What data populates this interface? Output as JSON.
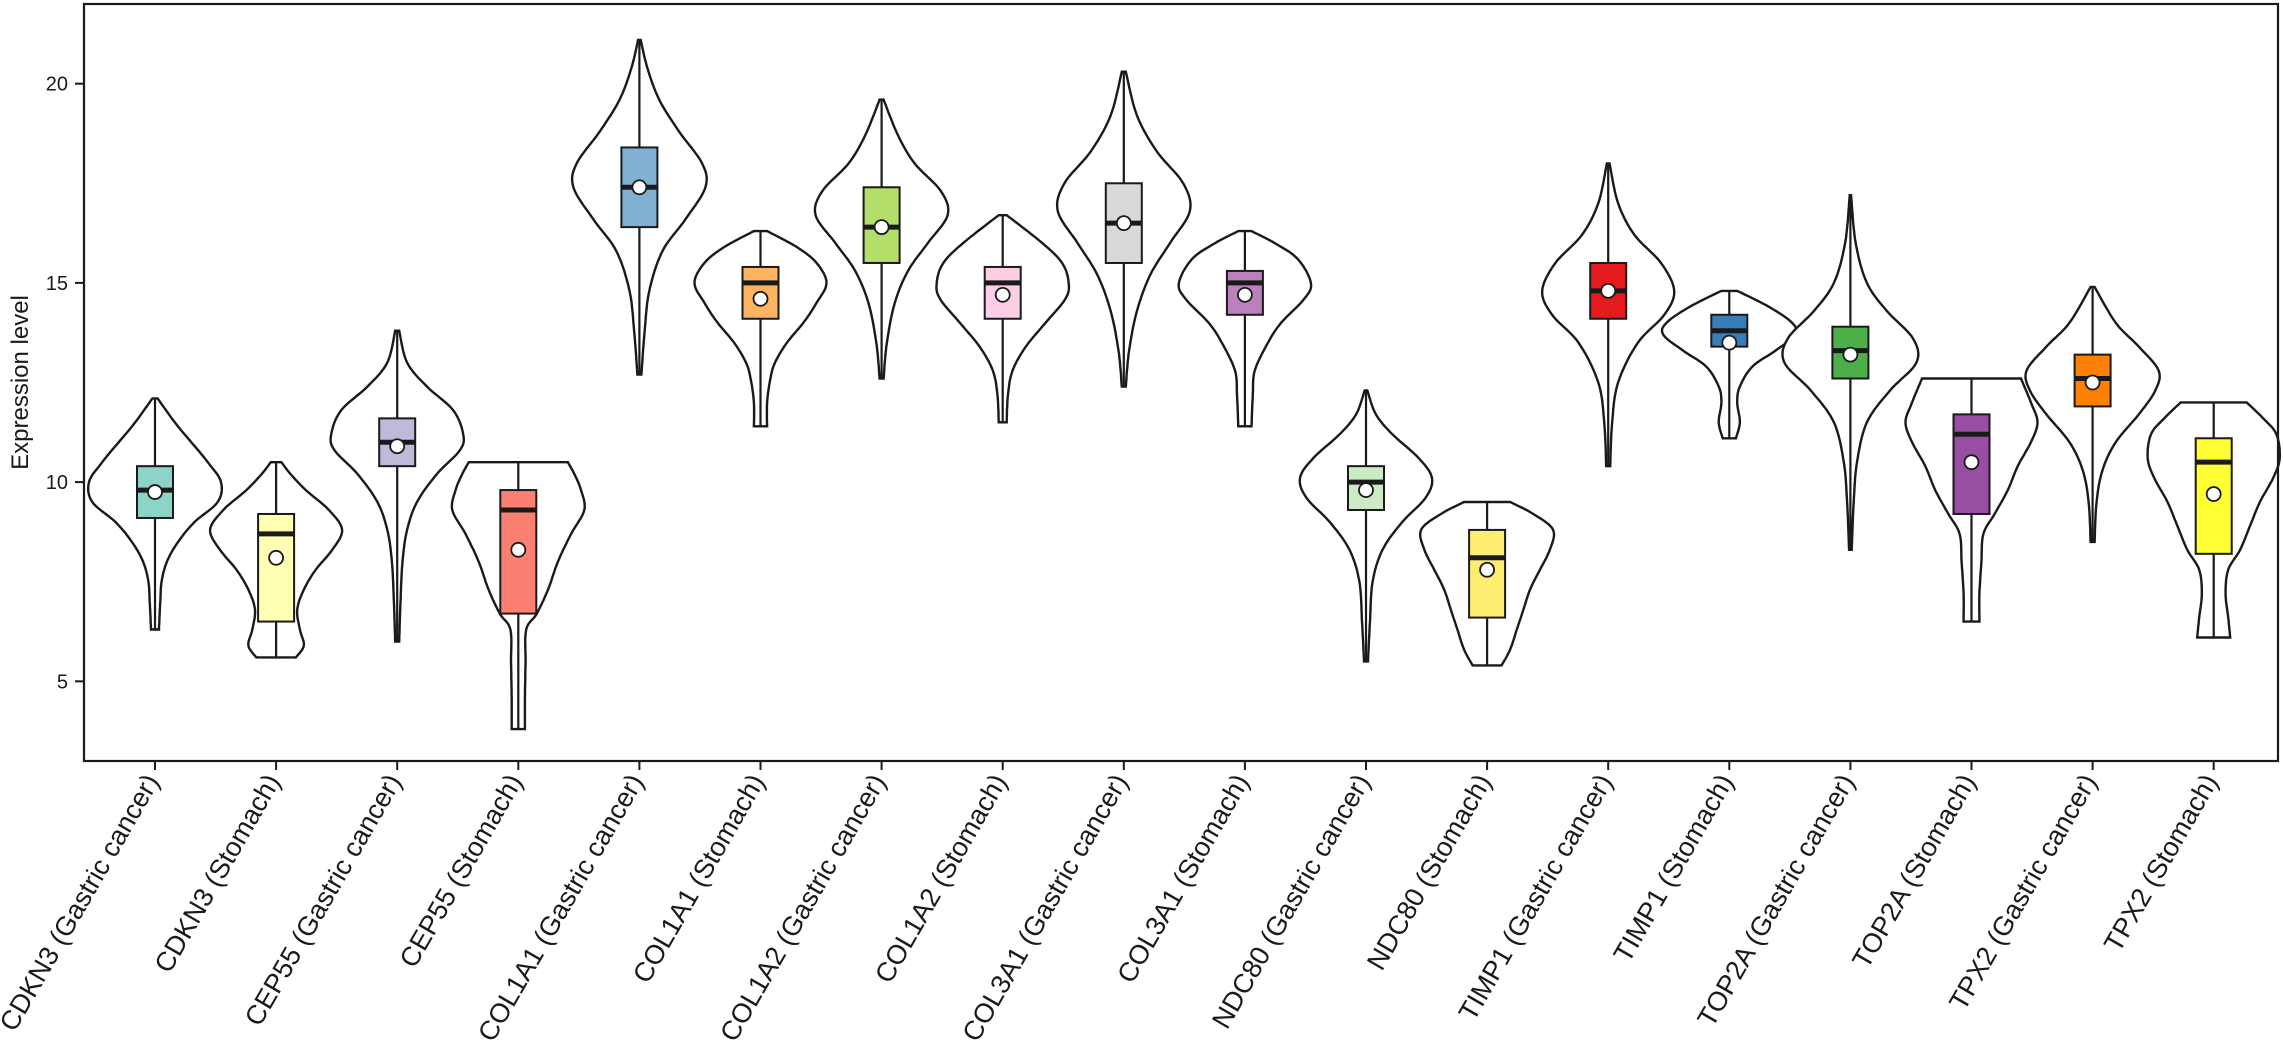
{
  "chart_data": {
    "type": "violin",
    "title": "",
    "xlabel": "",
    "ylabel": "Expression level",
    "ylim": [
      3,
      22
    ],
    "yticks": [
      5,
      10,
      15,
      20
    ],
    "grid": false,
    "legend": "none",
    "categories": [
      "CDKN3 (Gastric cancer)",
      "CDKN3 (Stomach)",
      "CEP55 (Gastric cancer)",
      "CEP55 (Stomach)",
      "COL1A1 (Gastric cancer)",
      "COL1A1 (Stomach)",
      "COL1A2 (Gastric cancer)",
      "COL1A2 (Stomach)",
      "COL3A1 (Gastric cancer)",
      "COL3A1 (Stomach)",
      "NDC80 (Gastric cancer)",
      "NDC80 (Stomach)",
      "TIMP1 (Gastric cancer)",
      "TIMP1 (Stomach)",
      "TOP2A (Gastric cancer)",
      "TOP2A (Stomach)",
      "TPX2 (Gastric cancer)",
      "TPX2 (Stomach)"
    ],
    "groups": [
      {
        "label": "CDKN3 (Gastric cancer)",
        "color": "#8DD3C7",
        "min": 6.3,
        "q1": 9.1,
        "median": 9.8,
        "q3": 10.4,
        "max": 12.1,
        "mean": 9.75,
        "density": [
          [
            6.3,
            0.06
          ],
          [
            7.0,
            0.08
          ],
          [
            7.5,
            0.1
          ],
          [
            8.0,
            0.18
          ],
          [
            8.5,
            0.35
          ],
          [
            9.0,
            0.6
          ],
          [
            9.5,
            0.95
          ],
          [
            10.0,
            1.0
          ],
          [
            10.5,
            0.8
          ],
          [
            11.0,
            0.55
          ],
          [
            11.5,
            0.3
          ],
          [
            12.1,
            0.04
          ]
        ]
      },
      {
        "label": "CDKN3 (Stomach)",
        "color": "#FFFFB3",
        "min": 5.6,
        "q1": 6.5,
        "median": 8.7,
        "q3": 9.2,
        "max": 10.5,
        "mean": 8.1,
        "density": [
          [
            5.6,
            0.3
          ],
          [
            5.9,
            0.42
          ],
          [
            6.3,
            0.36
          ],
          [
            6.8,
            0.32
          ],
          [
            7.3,
            0.42
          ],
          [
            7.8,
            0.6
          ],
          [
            8.3,
            0.85
          ],
          [
            8.8,
            1.0
          ],
          [
            9.3,
            0.8
          ],
          [
            9.8,
            0.45
          ],
          [
            10.2,
            0.22
          ],
          [
            10.5,
            0.08
          ]
        ]
      },
      {
        "label": "CEP55 (Gastric cancer)",
        "color": "#BEBADA",
        "min": 6.0,
        "q1": 10.4,
        "median": 11.0,
        "q3": 11.6,
        "max": 13.8,
        "mean": 10.9,
        "density": [
          [
            6.0,
            0.03
          ],
          [
            7.0,
            0.05
          ],
          [
            8.0,
            0.08
          ],
          [
            8.8,
            0.15
          ],
          [
            9.5,
            0.3
          ],
          [
            10.2,
            0.6
          ],
          [
            10.8,
            0.95
          ],
          [
            11.2,
            1.0
          ],
          [
            11.8,
            0.85
          ],
          [
            12.4,
            0.45
          ],
          [
            13.0,
            0.15
          ],
          [
            13.8,
            0.03
          ]
        ]
      },
      {
        "label": "CEP55 (Stomach)",
        "color": "#FB8072",
        "min": 3.8,
        "q1": 6.7,
        "median": 9.3,
        "q3": 9.8,
        "max": 10.5,
        "mean": 8.3,
        "density": [
          [
            3.8,
            0.1
          ],
          [
            4.5,
            0.1
          ],
          [
            5.5,
            0.11
          ],
          [
            6.3,
            0.12
          ],
          [
            6.7,
            0.28
          ],
          [
            7.3,
            0.45
          ],
          [
            8.0,
            0.6
          ],
          [
            8.7,
            0.8
          ],
          [
            9.3,
            1.0
          ],
          [
            9.8,
            0.95
          ],
          [
            10.2,
            0.85
          ],
          [
            10.5,
            0.75
          ]
        ]
      },
      {
        "label": "COL1A1 (Gastric cancer)",
        "color": "#80B1D3",
        "min": 12.7,
        "q1": 16.4,
        "median": 17.4,
        "q3": 18.4,
        "max": 21.1,
        "mean": 17.4,
        "density": [
          [
            12.7,
            0.03
          ],
          [
            13.8,
            0.08
          ],
          [
            14.8,
            0.15
          ],
          [
            15.8,
            0.35
          ],
          [
            16.6,
            0.7
          ],
          [
            17.4,
            1.0
          ],
          [
            18.0,
            0.95
          ],
          [
            18.8,
            0.6
          ],
          [
            19.6,
            0.3
          ],
          [
            20.4,
            0.12
          ],
          [
            21.1,
            0.02
          ]
        ]
      },
      {
        "label": "COL1A1 (Stomach)",
        "color": "#FDB462",
        "min": 11.4,
        "q1": 14.1,
        "median": 15.0,
        "q3": 15.4,
        "max": 16.3,
        "mean": 14.6,
        "density": [
          [
            11.4,
            0.1
          ],
          [
            12.0,
            0.1
          ],
          [
            12.6,
            0.15
          ],
          [
            13.0,
            0.22
          ],
          [
            13.5,
            0.4
          ],
          [
            14.0,
            0.65
          ],
          [
            14.5,
            0.85
          ],
          [
            15.0,
            1.0
          ],
          [
            15.5,
            0.85
          ],
          [
            15.9,
            0.55
          ],
          [
            16.3,
            0.1
          ]
        ]
      },
      {
        "label": "COL1A2 (Gastric cancer)",
        "color": "#B3DE69",
        "min": 12.6,
        "q1": 15.5,
        "median": 16.4,
        "q3": 17.4,
        "max": 19.6,
        "mean": 16.4,
        "density": [
          [
            12.6,
            0.03
          ],
          [
            13.5,
            0.08
          ],
          [
            14.5,
            0.2
          ],
          [
            15.3,
            0.4
          ],
          [
            16.0,
            0.7
          ],
          [
            16.7,
            1.0
          ],
          [
            17.3,
            0.9
          ],
          [
            18.0,
            0.5
          ],
          [
            18.7,
            0.25
          ],
          [
            19.6,
            0.03
          ]
        ]
      },
      {
        "label": "COL1A2 (Stomach)",
        "color": "#FCCDE5",
        "min": 11.5,
        "q1": 14.1,
        "median": 15.0,
        "q3": 15.4,
        "max": 16.7,
        "mean": 14.7,
        "density": [
          [
            11.5,
            0.06
          ],
          [
            12.2,
            0.08
          ],
          [
            12.8,
            0.15
          ],
          [
            13.4,
            0.35
          ],
          [
            14.0,
            0.65
          ],
          [
            14.6,
            0.95
          ],
          [
            15.0,
            1.0
          ],
          [
            15.5,
            0.9
          ],
          [
            16.0,
            0.6
          ],
          [
            16.7,
            0.06
          ]
        ]
      },
      {
        "label": "COL3A1 (Gastric cancer)",
        "color": "#D9D9D9",
        "min": 12.4,
        "q1": 15.5,
        "median": 16.5,
        "q3": 17.5,
        "max": 20.3,
        "mean": 16.5,
        "density": [
          [
            12.4,
            0.03
          ],
          [
            13.3,
            0.08
          ],
          [
            14.3,
            0.2
          ],
          [
            15.2,
            0.4
          ],
          [
            16.0,
            0.7
          ],
          [
            16.8,
            1.0
          ],
          [
            17.5,
            0.9
          ],
          [
            18.3,
            0.5
          ],
          [
            19.2,
            0.2
          ],
          [
            20.3,
            0.03
          ]
        ]
      },
      {
        "label": "COL3A1 (Stomach)",
        "color": "#BC80BD",
        "min": 11.4,
        "q1": 14.2,
        "median": 15.0,
        "q3": 15.3,
        "max": 16.3,
        "mean": 14.7,
        "density": [
          [
            11.4,
            0.1
          ],
          [
            12.2,
            0.12
          ],
          [
            12.8,
            0.15
          ],
          [
            13.5,
            0.35
          ],
          [
            14.0,
            0.55
          ],
          [
            14.6,
            0.9
          ],
          [
            15.0,
            1.0
          ],
          [
            15.6,
            0.8
          ],
          [
            16.0,
            0.45
          ],
          [
            16.3,
            0.1
          ]
        ]
      },
      {
        "label": "NDC80 (Gastric cancer)",
        "color": "#CCEBC5",
        "min": 5.5,
        "q1": 9.3,
        "median": 10.0,
        "q3": 10.4,
        "max": 12.3,
        "mean": 9.8,
        "density": [
          [
            5.5,
            0.03
          ],
          [
            6.5,
            0.06
          ],
          [
            7.5,
            0.1
          ],
          [
            8.3,
            0.25
          ],
          [
            9.0,
            0.55
          ],
          [
            9.6,
            0.9
          ],
          [
            10.1,
            1.0
          ],
          [
            10.6,
            0.8
          ],
          [
            11.2,
            0.4
          ],
          [
            11.7,
            0.15
          ],
          [
            12.3,
            0.02
          ]
        ]
      },
      {
        "label": "NDC80 (Stomach)",
        "color": "#FFED6F",
        "min": 5.4,
        "q1": 6.6,
        "median": 8.1,
        "q3": 8.8,
        "max": 9.5,
        "mean": 7.8,
        "density": [
          [
            5.4,
            0.22
          ],
          [
            5.8,
            0.35
          ],
          [
            6.3,
            0.45
          ],
          [
            6.8,
            0.55
          ],
          [
            7.3,
            0.65
          ],
          [
            7.8,
            0.8
          ],
          [
            8.3,
            0.95
          ],
          [
            8.8,
            1.0
          ],
          [
            9.2,
            0.7
          ],
          [
            9.5,
            0.35
          ]
        ]
      },
      {
        "label": "TIMP1 (Gastric cancer)",
        "color": "#E41A1C",
        "min": 10.4,
        "q1": 14.1,
        "median": 14.8,
        "q3": 15.5,
        "max": 18.0,
        "mean": 14.8,
        "density": [
          [
            10.4,
            0.03
          ],
          [
            11.5,
            0.06
          ],
          [
            12.5,
            0.15
          ],
          [
            13.5,
            0.45
          ],
          [
            14.2,
            0.85
          ],
          [
            14.8,
            1.0
          ],
          [
            15.5,
            0.8
          ],
          [
            16.2,
            0.4
          ],
          [
            17.0,
            0.15
          ],
          [
            18.0,
            0.02
          ]
        ]
      },
      {
        "label": "TIMP1 (Stomach)",
        "color": "#377EB8",
        "min": 11.1,
        "q1": 13.4,
        "median": 13.8,
        "q3": 14.2,
        "max": 14.8,
        "mean": 13.5,
        "density": [
          [
            11.1,
            0.1
          ],
          [
            11.5,
            0.16
          ],
          [
            12.0,
            0.12
          ],
          [
            12.4,
            0.16
          ],
          [
            12.9,
            0.35
          ],
          [
            13.3,
            0.7
          ],
          [
            13.7,
            1.0
          ],
          [
            14.0,
            0.95
          ],
          [
            14.4,
            0.6
          ],
          [
            14.8,
            0.12
          ]
        ]
      },
      {
        "label": "TOP2A (Gastric cancer)",
        "color": "#4DAF4A",
        "min": 8.3,
        "q1": 12.6,
        "median": 13.3,
        "q3": 13.9,
        "max": 17.2,
        "mean": 13.2,
        "density": [
          [
            8.3,
            0.02
          ],
          [
            9.5,
            0.05
          ],
          [
            10.5,
            0.1
          ],
          [
            11.5,
            0.25
          ],
          [
            12.3,
            0.6
          ],
          [
            13.0,
            1.0
          ],
          [
            13.6,
            0.95
          ],
          [
            14.3,
            0.55
          ],
          [
            15.0,
            0.25
          ],
          [
            16.0,
            0.08
          ],
          [
            17.2,
            0.01
          ]
        ]
      },
      {
        "label": "TOP2A (Stomach)",
        "color": "#984EA3",
        "min": 6.5,
        "q1": 9.2,
        "median": 11.2,
        "q3": 11.7,
        "max": 12.6,
        "mean": 10.5,
        "density": [
          [
            6.5,
            0.12
          ],
          [
            7.2,
            0.12
          ],
          [
            8.0,
            0.15
          ],
          [
            8.7,
            0.18
          ],
          [
            9.2,
            0.35
          ],
          [
            9.8,
            0.55
          ],
          [
            10.4,
            0.7
          ],
          [
            11.0,
            0.9
          ],
          [
            11.5,
            1.0
          ],
          [
            12.0,
            0.9
          ],
          [
            12.6,
            0.75
          ]
        ]
      },
      {
        "label": "TPX2 (Gastric cancer)",
        "color": "#FF7F00",
        "min": 8.5,
        "q1": 11.9,
        "median": 12.6,
        "q3": 13.2,
        "max": 14.9,
        "mean": 12.5,
        "density": [
          [
            8.5,
            0.03
          ],
          [
            9.5,
            0.06
          ],
          [
            10.3,
            0.15
          ],
          [
            11.0,
            0.35
          ],
          [
            11.7,
            0.7
          ],
          [
            12.3,
            0.95
          ],
          [
            12.8,
            1.0
          ],
          [
            13.4,
            0.7
          ],
          [
            14.0,
            0.35
          ],
          [
            14.9,
            0.03
          ]
        ]
      },
      {
        "label": "TPX2 (Stomach)",
        "color": "#FFFF33",
        "min": 6.1,
        "q1": 8.2,
        "median": 10.5,
        "q3": 11.1,
        "max": 12.0,
        "mean": 9.7,
        "density": [
          [
            6.1,
            0.25
          ],
          [
            6.6,
            0.22
          ],
          [
            7.2,
            0.18
          ],
          [
            7.8,
            0.22
          ],
          [
            8.3,
            0.4
          ],
          [
            8.9,
            0.55
          ],
          [
            9.5,
            0.7
          ],
          [
            10.1,
            0.9
          ],
          [
            10.6,
            1.0
          ],
          [
            11.2,
            0.95
          ],
          [
            11.6,
            0.75
          ],
          [
            12.0,
            0.5
          ]
        ]
      }
    ]
  }
}
